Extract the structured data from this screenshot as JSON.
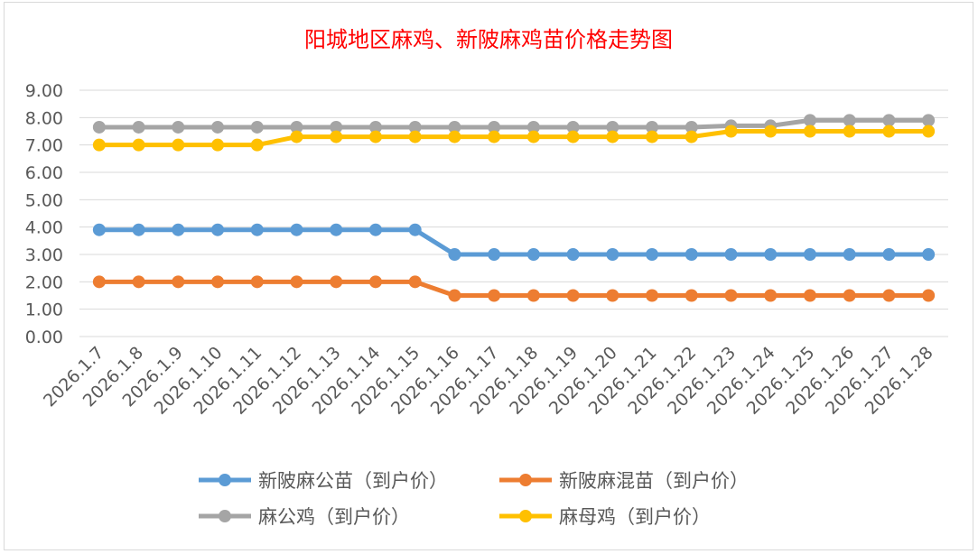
{
  "chart_data": {
    "type": "line",
    "title": "阳城地区麻鸡、新陂麻鸡苗价格走势图",
    "title_color": "#ff0000",
    "categories": [
      "2026.1.7",
      "2026.1.8",
      "2026.1.9",
      "2026.1.10",
      "2026.1.11",
      "2026.1.12",
      "2026.1.13",
      "2026.1.14",
      "2026.1.15",
      "2026.1.16",
      "2026.1.17",
      "2026.1.18",
      "2026.1.19",
      "2026.1.20",
      "2026.1.21",
      "2026.1.22",
      "2026.1.23",
      "2026.1.24",
      "2026.1.25",
      "2026.1.26",
      "2026.1.27",
      "2026.1.28"
    ],
    "ylim": [
      0,
      9
    ],
    "yticks": [
      "0.00",
      "1.00",
      "2.00",
      "3.00",
      "4.00",
      "5.00",
      "6.00",
      "7.00",
      "8.00",
      "9.00"
    ],
    "grid": true,
    "legend_placement": "bottom",
    "series": [
      {
        "name": "新陂麻公苗（到户价）",
        "color": "#5b9bd5",
        "values": [
          3.9,
          3.9,
          3.9,
          3.9,
          3.9,
          3.9,
          3.9,
          3.9,
          3.9,
          3.0,
          3.0,
          3.0,
          3.0,
          3.0,
          3.0,
          3.0,
          3.0,
          3.0,
          3.0,
          3.0,
          3.0,
          3.0
        ]
      },
      {
        "name": "新陂麻混苗（到户价）",
        "color": "#ed7d31",
        "values": [
          2.0,
          2.0,
          2.0,
          2.0,
          2.0,
          2.0,
          2.0,
          2.0,
          2.0,
          1.5,
          1.5,
          1.5,
          1.5,
          1.5,
          1.5,
          1.5,
          1.5,
          1.5,
          1.5,
          1.5,
          1.5,
          1.5
        ]
      },
      {
        "name": "麻公鸡（到户价）",
        "color": "#a5a5a5",
        "values": [
          7.65,
          7.65,
          7.65,
          7.65,
          7.65,
          7.65,
          7.65,
          7.65,
          7.65,
          7.65,
          7.65,
          7.65,
          7.65,
          7.65,
          7.65,
          7.65,
          7.7,
          7.7,
          7.9,
          7.9,
          7.9,
          7.9
        ]
      },
      {
        "name": "麻母鸡（到户价）",
        "color": "#ffc000",
        "values": [
          7.0,
          7.0,
          7.0,
          7.0,
          7.0,
          7.3,
          7.3,
          7.3,
          7.3,
          7.3,
          7.3,
          7.3,
          7.3,
          7.3,
          7.3,
          7.3,
          7.5,
          7.5,
          7.5,
          7.5,
          7.5,
          7.5
        ]
      }
    ]
  }
}
